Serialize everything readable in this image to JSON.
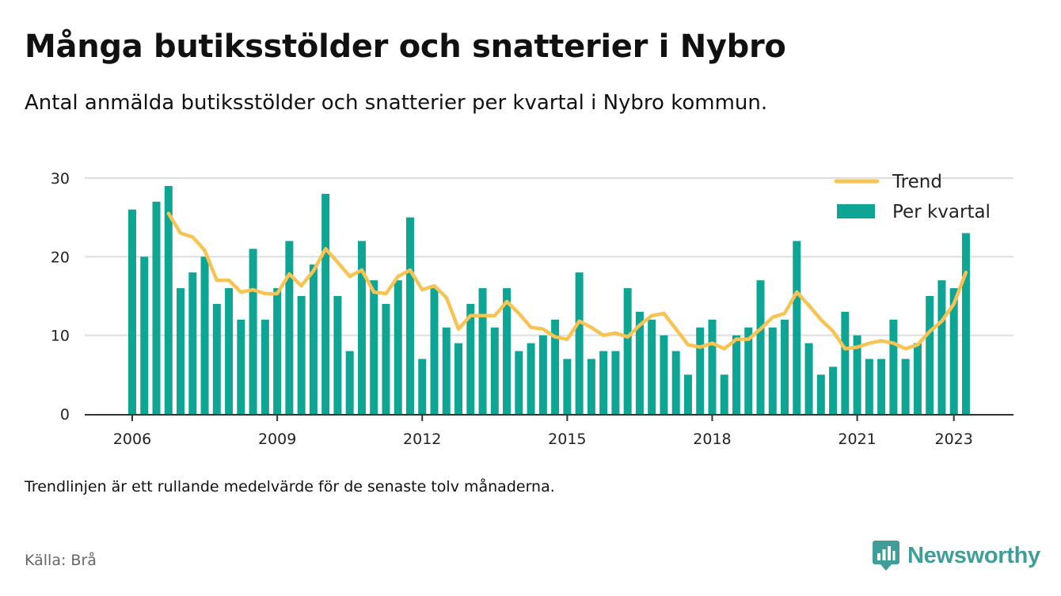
{
  "header": {
    "title": "Många butiksstölder och snatterier i Nybro",
    "subtitle": "Antal anmälda butiksstölder och snatterier per kvartal i Nybro kommun."
  },
  "footer": {
    "note": "Trendlinjen är ett rullande medelvärde för de senaste tolv månaderna.",
    "source": "Källa: Brå",
    "brand": "Newsworthy"
  },
  "colors": {
    "bars": "#0fa595",
    "trend": "#f7c453",
    "grid": "#dddddd",
    "axis": "#333333",
    "brand": "#3f9e99"
  },
  "chart_data": {
    "type": "bar",
    "title": "Många butiksstölder och snatterier i Nybro",
    "x_unit": "quarter",
    "start": "2006 Q1",
    "x_ticks": [
      "2006",
      "2009",
      "2012",
      "2015",
      "2018",
      "2021",
      "2023"
    ],
    "ylim": [
      0,
      30
    ],
    "y_ticks": [
      0,
      10,
      20,
      30
    ],
    "grid": true,
    "legend_position": "top-right",
    "series": [
      {
        "name": "Per kvartal",
        "type": "bar",
        "values": [
          26,
          20,
          27,
          29,
          16,
          18,
          20,
          14,
          16,
          12,
          21,
          12,
          16,
          22,
          15,
          19,
          28,
          15,
          8,
          22,
          17,
          14,
          17,
          25,
          7,
          16,
          11,
          9,
          14,
          16,
          11,
          16,
          8,
          9,
          10,
          12,
          7,
          18,
          7,
          8,
          8,
          16,
          13,
          12,
          10,
          8,
          5,
          11,
          12,
          5,
          10,
          11,
          17,
          11,
          12,
          22,
          9,
          5,
          6,
          13,
          10,
          7,
          7,
          12,
          7,
          9,
          15,
          17,
          16,
          23
        ]
      },
      {
        "name": "Trend",
        "type": "line",
        "start_index": 3,
        "values": [
          25.5,
          23.0,
          22.5,
          20.8,
          17.0,
          17.0,
          15.5,
          15.8,
          15.3,
          15.3,
          17.8,
          16.3,
          18.2,
          21.0,
          19.3,
          17.5,
          18.3,
          15.5,
          15.3,
          17.5,
          18.3,
          15.8,
          16.3,
          14.8,
          10.8,
          12.5,
          12.5,
          12.5,
          14.3,
          12.8,
          11.0,
          10.8,
          9.8,
          9.5,
          11.8,
          11.0,
          10.0,
          10.3,
          9.8,
          11.3,
          12.5,
          12.8,
          10.8,
          8.8,
          8.5,
          9.0,
          8.3,
          9.5,
          9.5,
          10.8,
          12.3,
          12.8,
          15.5,
          13.8,
          12.0,
          10.5,
          8.3,
          8.5,
          9.0,
          9.3,
          9.0,
          8.3,
          8.8,
          10.5,
          11.8,
          14.0,
          18.0
        ]
      }
    ]
  }
}
